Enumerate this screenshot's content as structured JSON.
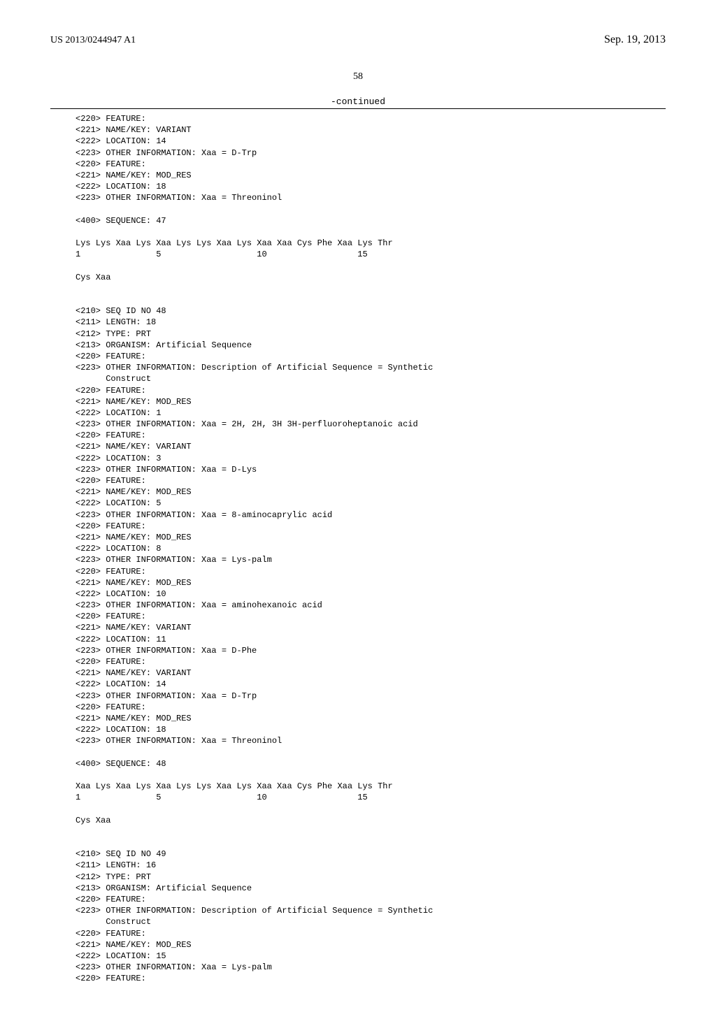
{
  "header": {
    "pub_id": "US 2013/0244947 A1",
    "pub_date": "Sep. 19, 2013",
    "page_num": "58",
    "continued": "-continued"
  },
  "listing": {
    "lines": [
      "<220> FEATURE:",
      "<221> NAME/KEY: VARIANT",
      "<222> LOCATION: 14",
      "<223> OTHER INFORMATION: Xaa = D-Trp",
      "<220> FEATURE:",
      "<221> NAME/KEY: MOD_RES",
      "<222> LOCATION: 18",
      "<223> OTHER INFORMATION: Xaa = Threoninol",
      "",
      "<400> SEQUENCE: 47",
      "",
      "Lys Lys Xaa Lys Xaa Lys Lys Xaa Lys Xaa Xaa Cys Phe Xaa Lys Thr",
      "1               5                   10                  15",
      "",
      "Cys Xaa",
      "",
      "",
      "<210> SEQ ID NO 48",
      "<211> LENGTH: 18",
      "<212> TYPE: PRT",
      "<213> ORGANISM: Artificial Sequence",
      "<220> FEATURE:",
      "<223> OTHER INFORMATION: Description of Artificial Sequence = Synthetic",
      "      Construct",
      "<220> FEATURE:",
      "<221> NAME/KEY: MOD_RES",
      "<222> LOCATION: 1",
      "<223> OTHER INFORMATION: Xaa = 2H, 2H, 3H 3H-perfluoroheptanoic acid",
      "<220> FEATURE:",
      "<221> NAME/KEY: VARIANT",
      "<222> LOCATION: 3",
      "<223> OTHER INFORMATION: Xaa = D-Lys",
      "<220> FEATURE:",
      "<221> NAME/KEY: MOD_RES",
      "<222> LOCATION: 5",
      "<223> OTHER INFORMATION: Xaa = 8-aminocaprylic acid",
      "<220> FEATURE:",
      "<221> NAME/KEY: MOD_RES",
      "<222> LOCATION: 8",
      "<223> OTHER INFORMATION: Xaa = Lys-palm",
      "<220> FEATURE:",
      "<221> NAME/KEY: MOD_RES",
      "<222> LOCATION: 10",
      "<223> OTHER INFORMATION: Xaa = aminohexanoic acid",
      "<220> FEATURE:",
      "<221> NAME/KEY: VARIANT",
      "<222> LOCATION: 11",
      "<223> OTHER INFORMATION: Xaa = D-Phe",
      "<220> FEATURE:",
      "<221> NAME/KEY: VARIANT",
      "<222> LOCATION: 14",
      "<223> OTHER INFORMATION: Xaa = D-Trp",
      "<220> FEATURE:",
      "<221> NAME/KEY: MOD_RES",
      "<222> LOCATION: 18",
      "<223> OTHER INFORMATION: Xaa = Threoninol",
      "",
      "<400> SEQUENCE: 48",
      "",
      "Xaa Lys Xaa Lys Xaa Lys Lys Xaa Lys Xaa Xaa Cys Phe Xaa Lys Thr",
      "1               5                   10                  15",
      "",
      "Cys Xaa",
      "",
      "",
      "<210> SEQ ID NO 49",
      "<211> LENGTH: 16",
      "<212> TYPE: PRT",
      "<213> ORGANISM: Artificial Sequence",
      "<220> FEATURE:",
      "<223> OTHER INFORMATION: Description of Artificial Sequence = Synthetic",
      "      Construct",
      "<220> FEATURE:",
      "<221> NAME/KEY: MOD_RES",
      "<222> LOCATION: 15",
      "<223> OTHER INFORMATION: Xaa = Lys-palm",
      "<220> FEATURE:"
    ]
  }
}
